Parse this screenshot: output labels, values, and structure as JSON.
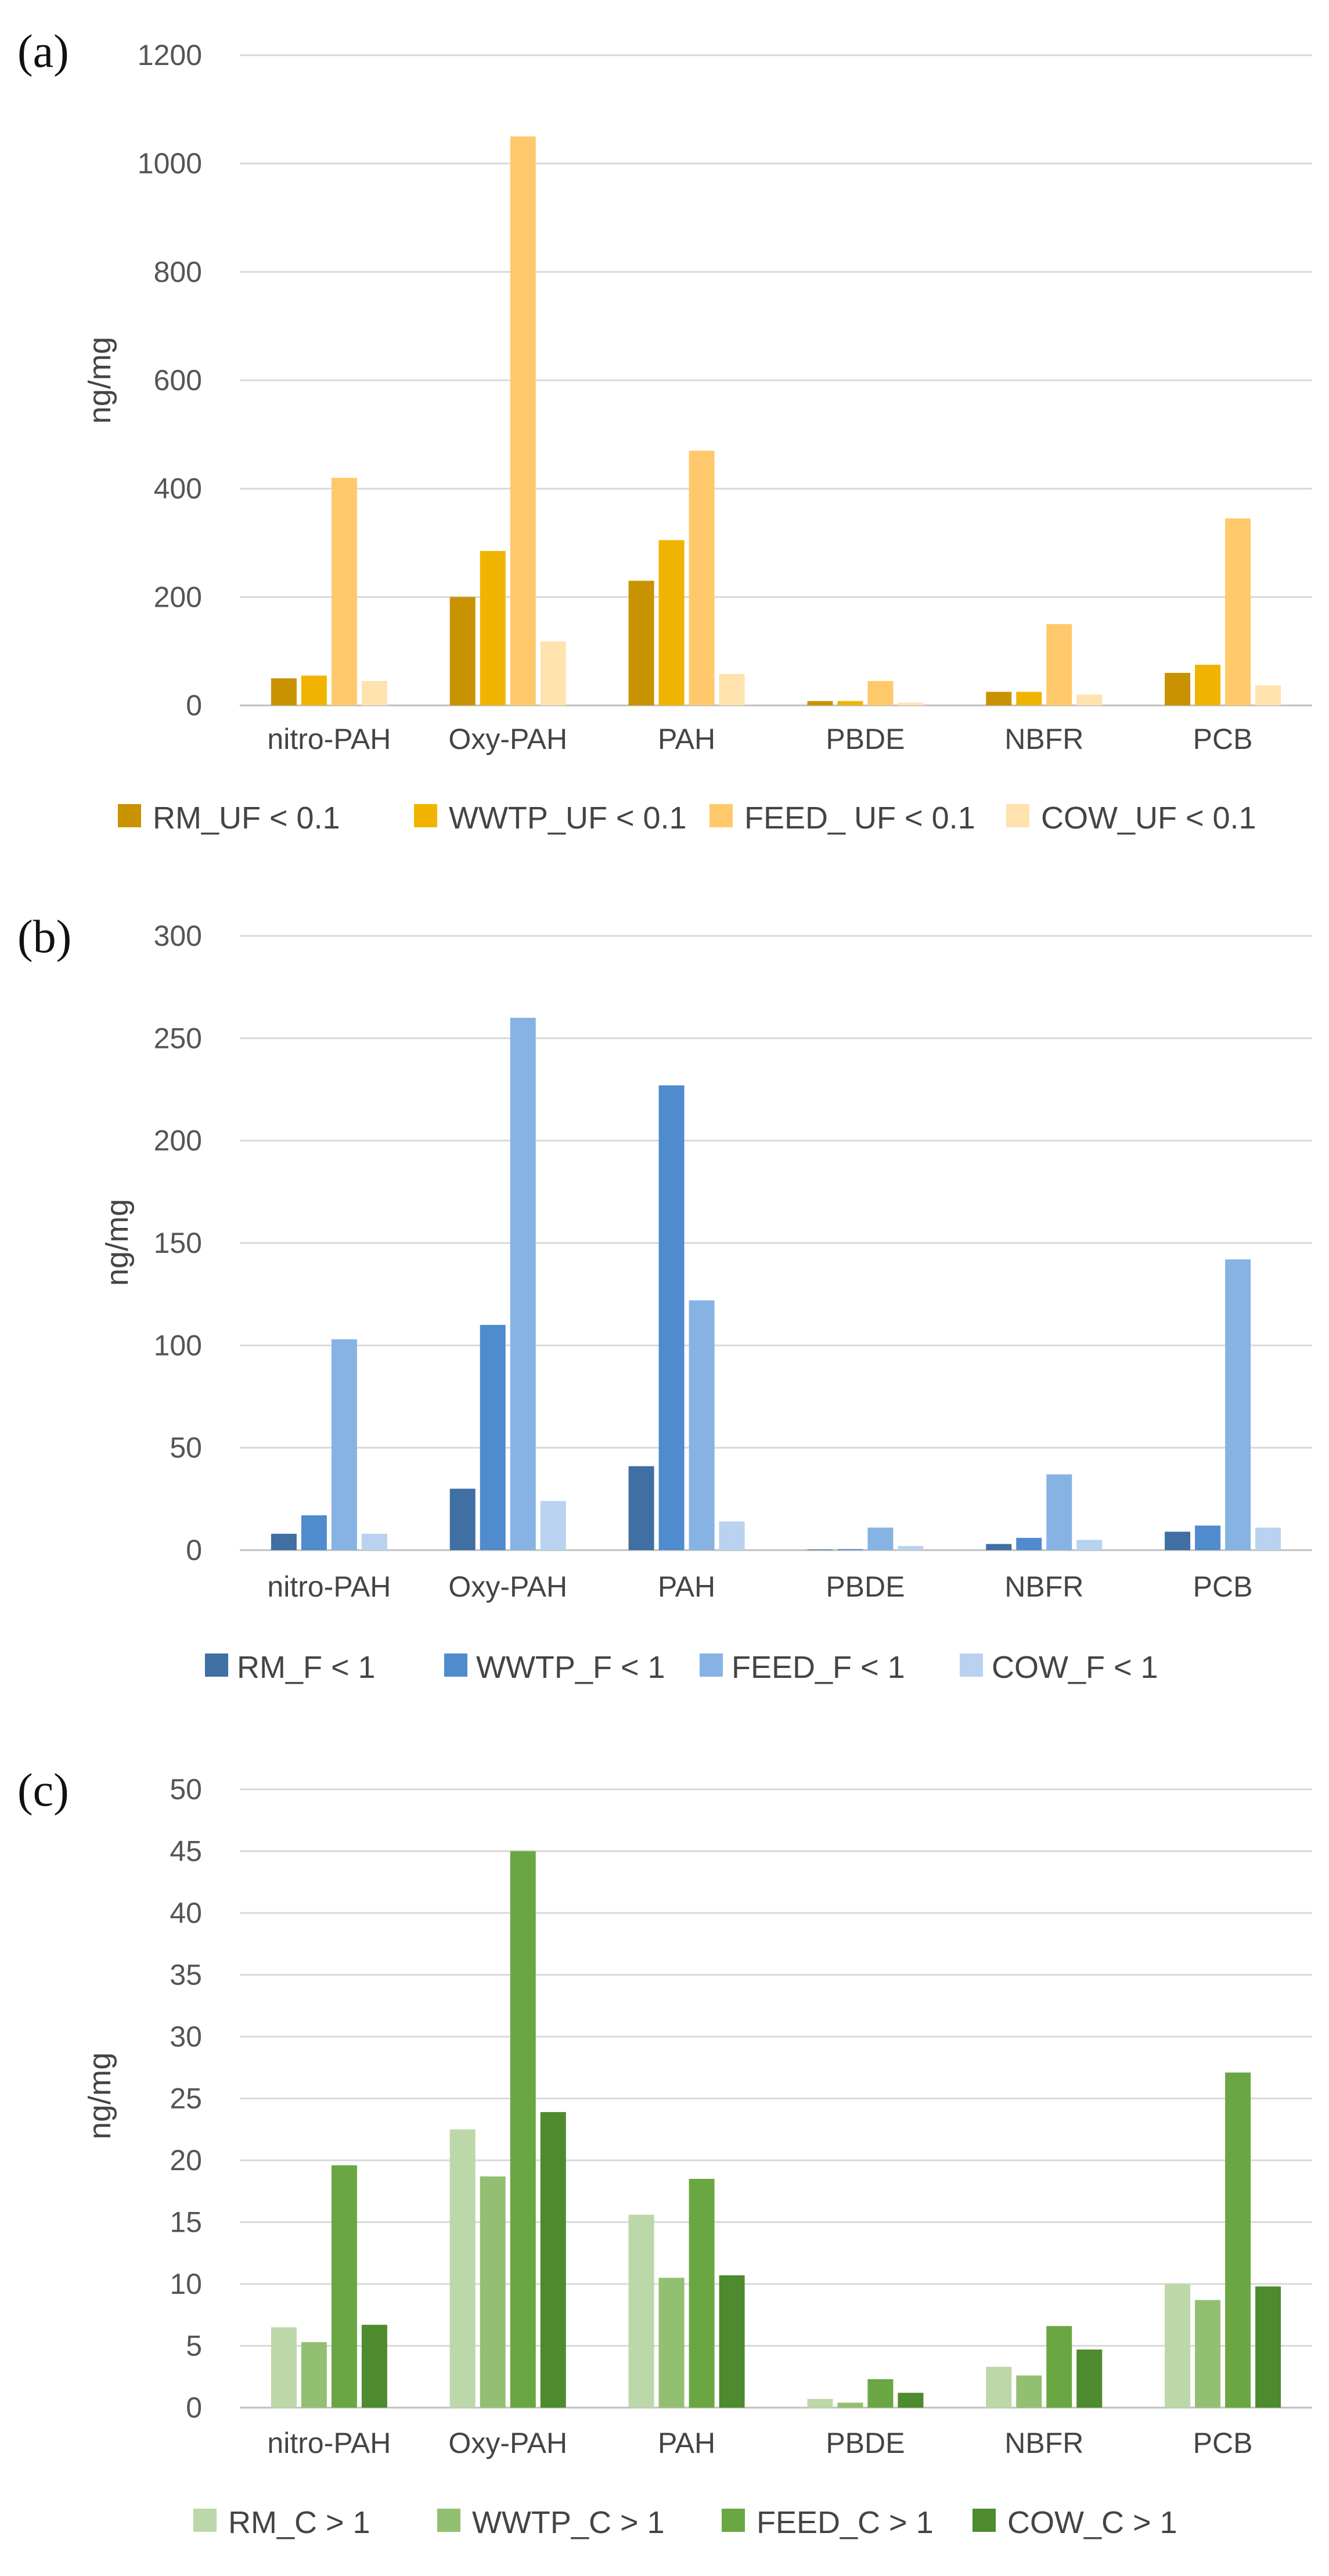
{
  "chart_data": [
    {
      "type": "bar",
      "panel_label": "(a)",
      "ylabel": "ng/mg",
      "ylim": [
        0,
        1200
      ],
      "yticks": [
        0,
        200,
        400,
        600,
        800,
        1000,
        1200
      ],
      "categories": [
        "nitro-PAH",
        "Oxy-PAH",
        "PAH",
        "PBDE",
        "NBFR",
        "PCB"
      ],
      "series": [
        {
          "name": "RM_UF < 0.1",
          "color": "#c89200",
          "values": [
            50,
            200,
            230,
            8,
            25,
            60
          ]
        },
        {
          "name": "WWTP_UF < 0.1",
          "color": "#f0b400",
          "values": [
            55,
            285,
            305,
            8,
            25,
            75
          ]
        },
        {
          "name": "FEED_ UF < 0.1",
          "color": "#ffc96b",
          "values": [
            420,
            1050,
            470,
            45,
            150,
            345
          ]
        },
        {
          "name": "COW_UF < 0.1",
          "color": "#ffe2ad",
          "values": [
            45,
            118,
            58,
            5,
            20,
            37
          ]
        }
      ]
    },
    {
      "type": "bar",
      "panel_label": "(b)",
      "ylabel": "ng/mg",
      "ylim": [
        0,
        300
      ],
      "yticks": [
        0,
        50,
        100,
        150,
        200,
        250,
        300
      ],
      "categories": [
        "nitro-PAH",
        "Oxy-PAH",
        "PAH",
        "PBDE",
        "NBFR",
        "PCB"
      ],
      "series": [
        {
          "name": "RM_F < 1",
          "color": "#3f6fa3",
          "values": [
            8,
            30,
            41,
            0.3,
            3,
            9
          ]
        },
        {
          "name": "WWTP_F < 1",
          "color": "#4f8bcd",
          "values": [
            17,
            110,
            227,
            0.5,
            6,
            12
          ]
        },
        {
          "name": "FEED_F < 1",
          "color": "#86b3e3",
          "values": [
            103,
            260,
            122,
            11,
            37,
            142
          ]
        },
        {
          "name": "COW_F < 1",
          "color": "#b8d2f0",
          "values": [
            8,
            24,
            14,
            2,
            5,
            11
          ]
        }
      ]
    },
    {
      "type": "bar",
      "panel_label": "(c)",
      "ylabel": "ng/mg",
      "ylim": [
        0,
        50
      ],
      "yticks": [
        0,
        5,
        10,
        15,
        20,
        25,
        30,
        35,
        40,
        45,
        50
      ],
      "categories": [
        "nitro-PAH",
        "Oxy-PAH",
        "PAH",
        "PBDE",
        "NBFR",
        "PCB"
      ],
      "series": [
        {
          "name": "RM_C > 1",
          "color": "#bcd7a8",
          "values": [
            6.5,
            22.5,
            15.6,
            0.7,
            3.3,
            10
          ]
        },
        {
          "name": "WWTP_C > 1",
          "color": "#93bf72",
          "values": [
            5.3,
            18.7,
            10.5,
            0.4,
            2.6,
            8.7
          ]
        },
        {
          "name": "FEED_C > 1",
          "color": "#6aa743",
          "values": [
            19.6,
            45,
            18.5,
            2.3,
            6.6,
            27.1
          ]
        },
        {
          "name": "COW_C > 1",
          "color": "#4e8a2e",
          "values": [
            6.7,
            23.9,
            10.7,
            1.2,
            4.7,
            9.8
          ]
        }
      ]
    }
  ]
}
